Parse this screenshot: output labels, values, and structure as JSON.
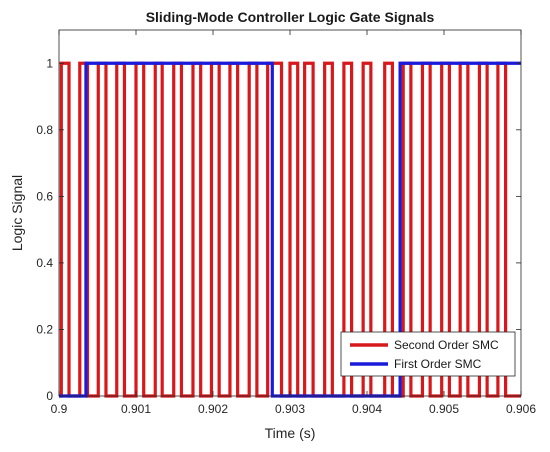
{
  "chart_data": {
    "type": "line",
    "title": "Sliding-Mode Controller Logic Gate Signals",
    "xlabel": "Time (s)",
    "ylabel": "Logic Signal",
    "xlim": [
      0.9,
      0.906
    ],
    "ylim": [
      0,
      1.1
    ],
    "x_ticks": [
      0.9,
      0.901,
      0.902,
      0.903,
      0.904,
      0.905,
      0.906
    ],
    "x_tick_labels": [
      "0.9",
      "0.901",
      "0.902",
      "0.903",
      "0.904",
      "0.905",
      "0.906"
    ],
    "y_ticks": [
      0,
      0.2,
      0.4,
      0.6,
      0.8,
      1
    ],
    "y_tick_labels": [
      "0",
      "0.2",
      "0.4",
      "0.6",
      "0.8",
      "1"
    ],
    "grid": false,
    "legend_position": "bottom-right",
    "series": [
      {
        "name": "Second Order SMC",
        "color": "#d7191c",
        "pulses": [
          [
            0.90003,
            0.90013
          ],
          [
            0.90027,
            0.90037
          ],
          [
            0.90051,
            0.90061
          ],
          [
            0.90075,
            0.90085
          ],
          [
            0.901,
            0.9011
          ],
          [
            0.90125,
            0.90134
          ],
          [
            0.90149,
            0.90159
          ],
          [
            0.90174,
            0.90184
          ],
          [
            0.90198,
            0.90208
          ],
          [
            0.90222,
            0.90232
          ],
          [
            0.90247,
            0.90257
          ],
          [
            0.90271,
            0.90289
          ],
          [
            0.903,
            0.9031
          ],
          [
            0.90319,
            0.9033
          ],
          [
            0.90345,
            0.90355
          ],
          [
            0.9037,
            0.9038
          ],
          [
            0.90395,
            0.90405
          ],
          [
            0.90423,
            0.90433
          ],
          [
            0.90447,
            0.90457
          ],
          [
            0.90472,
            0.90482
          ],
          [
            0.90497,
            0.90507
          ],
          [
            0.90521,
            0.90531
          ],
          [
            0.90546,
            0.90556
          ],
          [
            0.9057,
            0.9058
          ]
        ]
      },
      {
        "name": "First Order SMC",
        "color": "#1a1adb",
        "pulses": [
          [
            0.90035,
            0.90277
          ],
          [
            0.90443,
            0.906
          ]
        ]
      }
    ]
  }
}
